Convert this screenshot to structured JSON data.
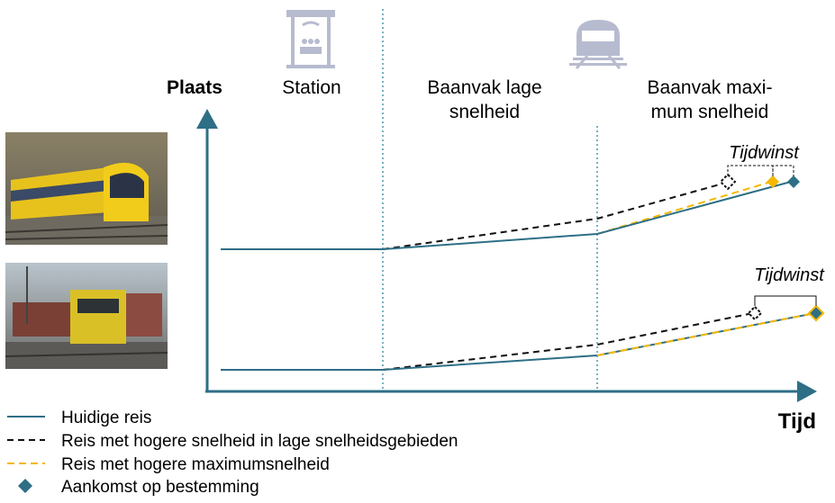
{
  "axes": {
    "y_label": "Plaats",
    "x_label": "Tijd"
  },
  "sections": [
    {
      "lines": [
        "Station"
      ]
    },
    {
      "lines": [
        "Baanvak lage",
        "snelheid"
      ]
    },
    {
      "lines": [
        "Baanvak maxi-",
        "mum snelheid"
      ]
    }
  ],
  "annotations": [
    "Tijdwinst",
    "Tijdwinst"
  ],
  "legend": [
    "Huidige reis",
    "Reis met hogere snelheid in lage snelheidsgebieden",
    "Reis met hogere maximumsnelheid",
    "Aankomst op bestemming"
  ]
}
